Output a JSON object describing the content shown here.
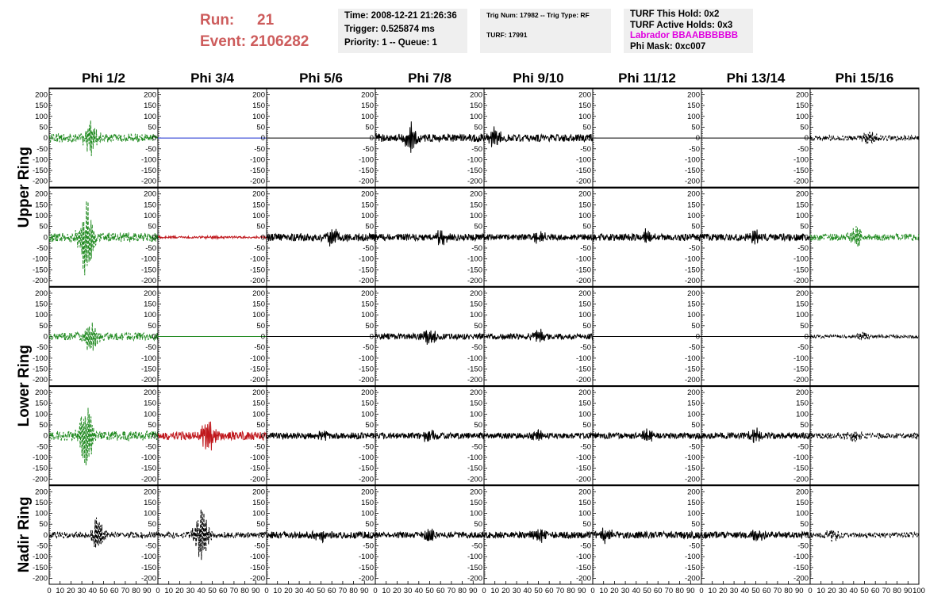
{
  "header": {
    "run_label": "Run:",
    "run_value": "21",
    "event_label": "Event:",
    "event_value": "2106282"
  },
  "info_time": {
    "time": "Time: 2008-12-21 21:26:36",
    "trigger": "Trigger: 0.525874 ms",
    "priority": "Priority: 1 -- Queue: 1"
  },
  "info_trig": {
    "trig": "Trig Num: 17982 -- Trig Type: RF",
    "turf": "TURF: 17991"
  },
  "info_turf": {
    "hold": "TURF This Hold: 0x2",
    "active": "TURF Active Holds: 0x3",
    "labrador": "Labrador BBAABBBBBB",
    "phimask": "Phi Mask: 0xc007"
  },
  "chart_data": {
    "type": "line",
    "columns": [
      "Phi 1/2",
      "Phi 3/4",
      "Phi 5/6",
      "Phi 7/8",
      "Phi 9/10",
      "Phi 11/12",
      "Phi 13/14",
      "Phi 15/16"
    ],
    "row_groups": [
      {
        "label": "Upper Ring",
        "rows": [
          0,
          1
        ]
      },
      {
        "label": "Lower Ring",
        "rows": [
          2,
          3
        ]
      },
      {
        "label": "Nadir Ring",
        "rows": [
          4
        ]
      }
    ],
    "xlim": [
      0,
      100
    ],
    "ylim": [
      -220,
      220
    ],
    "yticks": [
      -200,
      -150,
      -100,
      -50,
      0,
      50,
      100,
      150,
      200
    ],
    "xticks": [
      "0",
      "10",
      "20",
      "30",
      "40",
      "50",
      "60",
      "70",
      "80",
      "90",
      "100"
    ],
    "colors": {
      "black": "#000000",
      "green": "#228b22",
      "red": "#c0171c",
      "blue": "#1a2fd0"
    },
    "panels": [
      [
        {
          "color": "green",
          "dashed": true,
          "amp": 20,
          "peak": 75,
          "center": 38
        },
        {
          "color": "blue",
          "dashed": false,
          "amp": 0,
          "peak": 0,
          "center": 0
        },
        {
          "color": "black",
          "dashed": false,
          "amp": 0,
          "peak": 0,
          "center": 0
        },
        {
          "color": "black",
          "dashed": false,
          "amp": 18,
          "peak": 70,
          "center": 33
        },
        {
          "color": "black",
          "dashed": false,
          "amp": 17,
          "peak": 55,
          "center": 10
        },
        {
          "color": "black",
          "dashed": false,
          "amp": 0,
          "peak": 0,
          "center": 0
        },
        {
          "color": "black",
          "dashed": false,
          "amp": 0,
          "peak": 0,
          "center": 0
        },
        {
          "color": "black",
          "dashed": true,
          "amp": 12,
          "peak": 38,
          "center": 55
        }
      ],
      [
        {
          "color": "green",
          "dashed": true,
          "amp": 22,
          "peak": 210,
          "center": 34
        },
        {
          "color": "red",
          "dashed": false,
          "amp": 5,
          "peak": 8,
          "center": 50
        },
        {
          "color": "black",
          "dashed": false,
          "amp": 18,
          "peak": 35,
          "center": 60
        },
        {
          "color": "black",
          "dashed": false,
          "amp": 16,
          "peak": 35,
          "center": 60
        },
        {
          "color": "black",
          "dashed": false,
          "amp": 14,
          "peak": 30,
          "center": 50
        },
        {
          "color": "black",
          "dashed": false,
          "amp": 16,
          "peak": 30,
          "center": 50
        },
        {
          "color": "black",
          "dashed": false,
          "amp": 16,
          "peak": 30,
          "center": 50
        },
        {
          "color": "green",
          "dashed": true,
          "amp": 16,
          "peak": 55,
          "center": 42
        }
      ],
      [
        {
          "color": "green",
          "dashed": true,
          "amp": 18,
          "peak": 75,
          "center": 38
        },
        {
          "color": "green",
          "dashed": false,
          "amp": 0,
          "peak": 0,
          "center": 0
        },
        {
          "color": "black",
          "dashed": false,
          "amp": 0,
          "peak": 0,
          "center": 0
        },
        {
          "color": "black",
          "dashed": false,
          "amp": 14,
          "peak": 40,
          "center": 50
        },
        {
          "color": "black",
          "dashed": false,
          "amp": 13,
          "peak": 40,
          "center": 50
        },
        {
          "color": "black",
          "dashed": false,
          "amp": 0,
          "peak": 0,
          "center": 0
        },
        {
          "color": "black",
          "dashed": false,
          "amp": 0,
          "peak": 0,
          "center": 0
        },
        {
          "color": "black",
          "dashed": true,
          "amp": 8,
          "peak": 20,
          "center": 50
        }
      ],
      [
        {
          "color": "green",
          "dashed": true,
          "amp": 22,
          "peak": 170,
          "center": 34
        },
        {
          "color": "red",
          "dashed": false,
          "amp": 20,
          "peak": 80,
          "center": 46
        },
        {
          "color": "black",
          "dashed": false,
          "amp": 15,
          "peak": 32,
          "center": 50
        },
        {
          "color": "black",
          "dashed": false,
          "amp": 14,
          "peak": 30,
          "center": 50
        },
        {
          "color": "black",
          "dashed": false,
          "amp": 13,
          "peak": 28,
          "center": 50
        },
        {
          "color": "black",
          "dashed": false,
          "amp": 14,
          "peak": 30,
          "center": 50
        },
        {
          "color": "black",
          "dashed": false,
          "amp": 14,
          "peak": 30,
          "center": 50
        },
        {
          "color": "black",
          "dashed": true,
          "amp": 14,
          "peak": 35,
          "center": 40
        }
      ],
      [
        {
          "color": "black",
          "dashed": true,
          "amp": 15,
          "peak": 80,
          "center": 45
        },
        {
          "color": "black",
          "dashed": true,
          "amp": 14,
          "peak": 150,
          "center": 40
        },
        {
          "color": "black",
          "dashed": false,
          "amp": 16,
          "peak": 32,
          "center": 50
        },
        {
          "color": "black",
          "dashed": false,
          "amp": 14,
          "peak": 30,
          "center": 50
        },
        {
          "color": "black",
          "dashed": false,
          "amp": 15,
          "peak": 30,
          "center": 50
        },
        {
          "color": "black",
          "dashed": false,
          "amp": 16,
          "peak": 38,
          "center": 12
        },
        {
          "color": "black",
          "dashed": false,
          "amp": 15,
          "peak": 30,
          "center": 50
        },
        {
          "color": "black",
          "dashed": true,
          "amp": 12,
          "peak": 28,
          "center": 20
        }
      ]
    ]
  }
}
